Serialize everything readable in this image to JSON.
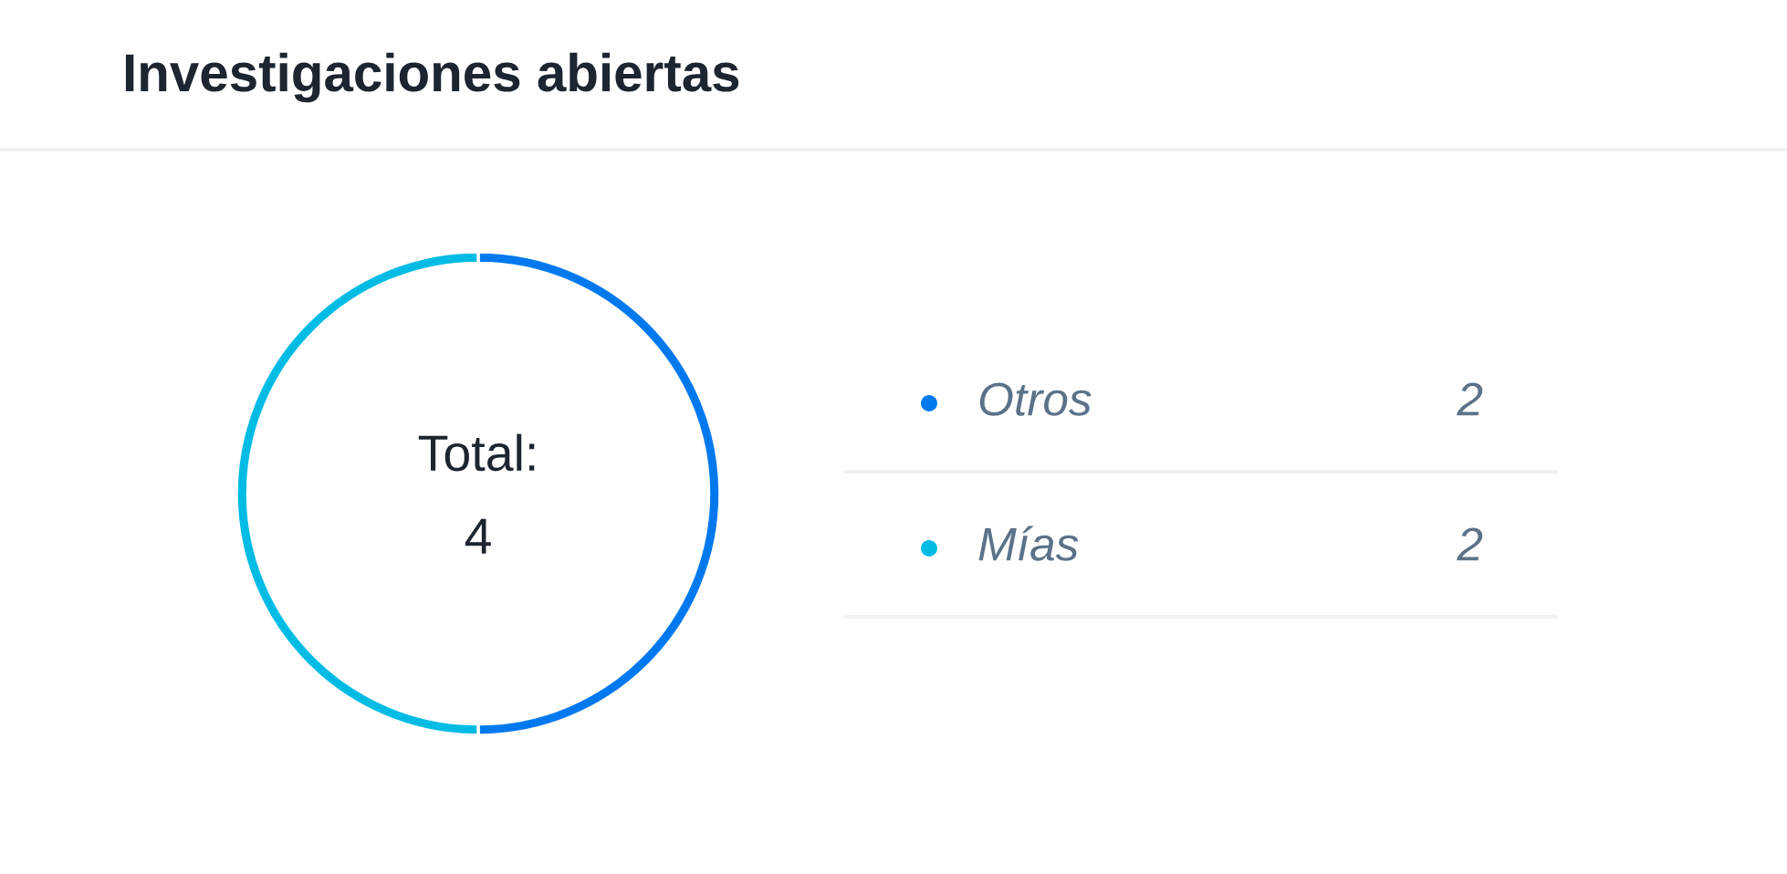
{
  "chart_data": {
    "type": "donut",
    "title": "Investigaciones abiertas",
    "categories": [
      "Otros",
      "Mías"
    ],
    "values": [
      2,
      2
    ],
    "colors": [
      "#0079ef",
      "#00bce4"
    ],
    "annotations": [
      "Total:",
      "4"
    ],
    "legend": "right",
    "data_labels": true
  }
}
